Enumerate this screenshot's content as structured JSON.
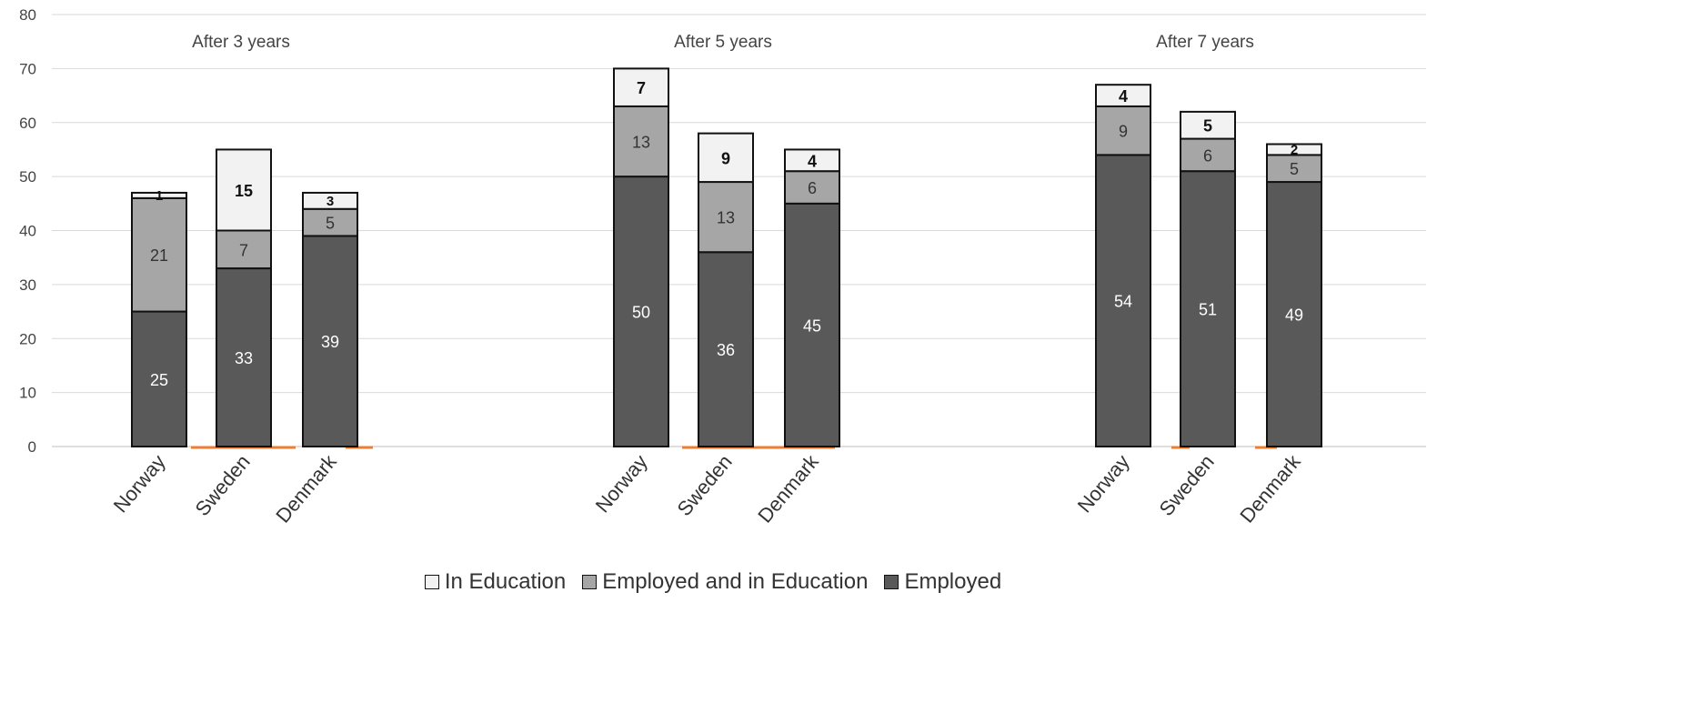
{
  "chart_data": {
    "type": "bar",
    "stacked": true,
    "ylim": [
      0,
      80
    ],
    "yticks": [
      "0",
      "10",
      "20",
      "30",
      "40",
      "50",
      "60",
      "70",
      "80"
    ],
    "grid": true,
    "legend_position": "bottom",
    "groups": [
      {
        "label": "After 3 years",
        "categories": [
          "Norway",
          "Sweden",
          "Denmark"
        ],
        "series": [
          {
            "name": "Employed",
            "values": [
              25,
              33,
              39
            ]
          },
          {
            "name": "Employed and in Education",
            "values": [
              21,
              7,
              5
            ]
          },
          {
            "name": "In Education",
            "values": [
              1,
              15,
              3
            ]
          }
        ]
      },
      {
        "label": "After 5 years",
        "categories": [
          "Norway",
          "Sweden",
          "Denmark"
        ],
        "series": [
          {
            "name": "Employed",
            "values": [
              50,
              36,
              45
            ]
          },
          {
            "name": "Employed and in Education",
            "values": [
              13,
              13,
              6
            ]
          },
          {
            "name": "In Education",
            "values": [
              7,
              9,
              4
            ]
          }
        ]
      },
      {
        "label": "After 7 years",
        "categories": [
          "Norway",
          "Sweden",
          "Denmark"
        ],
        "series": [
          {
            "name": "Employed",
            "values": [
              54,
              51,
              49
            ]
          },
          {
            "name": "Employed and in Education",
            "values": [
              9,
              6,
              5
            ]
          },
          {
            "name": "In Education",
            "values": [
              4,
              5,
              2
            ]
          }
        ]
      }
    ],
    "legend": [
      {
        "name": "In Education",
        "color": "#f2f2f2"
      },
      {
        "name": "Employed and in Education",
        "color": "#a6a6a6"
      },
      {
        "name": "Employed",
        "color": "#595959"
      }
    ],
    "colors": {
      "Employed": "#595959",
      "Employed and in Education": "#a6a6a6",
      "In Education": "#f2f2f2",
      "zero_marker": "#ed7d31"
    }
  }
}
